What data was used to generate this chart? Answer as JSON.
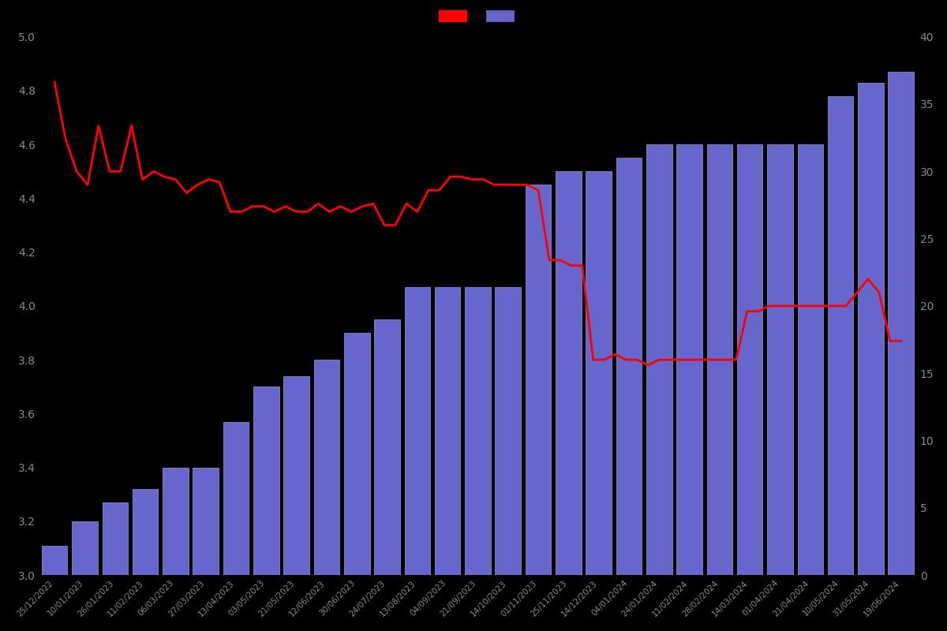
{
  "dates": [
    "25/12/2022",
    "10/01/2023",
    "26/01/2023",
    "11/02/2023",
    "06/03/2023",
    "27/03/2023",
    "13/04/2023",
    "03/05/2023",
    "21/05/2023",
    "12/06/2023",
    "30/06/2023",
    "24/07/2023",
    "13/08/2023",
    "04/09/2023",
    "21/09/2023",
    "14/10/2023",
    "01/11/2023",
    "25/11/2023",
    "14/12/2023",
    "04/01/2024",
    "24/01/2024",
    "11/02/2024",
    "28/02/2024",
    "14/03/2024",
    "01/04/2024",
    "21/04/2024",
    "10/05/2024",
    "31/05/2024",
    "19/06/2024"
  ],
  "bar_heights": [
    3.11,
    3.2,
    3.27,
    3.32,
    3.4,
    3.4,
    3.57,
    3.7,
    3.74,
    3.8,
    3.9,
    3.95,
    4.07,
    4.07,
    4.07,
    4.07,
    4.45,
    4.5,
    4.5,
    4.55,
    4.6,
    4.6,
    4.6,
    4.6,
    4.6,
    4.6,
    4.78,
    4.83,
    4.87
  ],
  "line_values": [
    4.83,
    4.62,
    4.5,
    4.45,
    4.67,
    4.5,
    4.5,
    4.67,
    4.47,
    4.5,
    4.48,
    4.47,
    4.42,
    4.45,
    4.47,
    4.46,
    4.35,
    4.35,
    4.37,
    4.37,
    4.35,
    4.37,
    4.35,
    4.35,
    4.38,
    4.35,
    4.37,
    4.35,
    4.37,
    4.38,
    4.3,
    4.3,
    4.38,
    4.35,
    4.43,
    4.43,
    4.48,
    4.48,
    4.47,
    4.47,
    4.45,
    4.45,
    4.45,
    4.45,
    4.43,
    4.17,
    4.17,
    4.15,
    4.15,
    3.8,
    3.8,
    3.82,
    3.8,
    3.8,
    3.78,
    3.8,
    3.8,
    3.8,
    3.8,
    3.8,
    3.8,
    3.8,
    3.8,
    3.98,
    3.98,
    4.0,
    4.0,
    4.0,
    4.0,
    4.0,
    4.0,
    4.0,
    4.0,
    4.05,
    4.1,
    4.05,
    3.87,
    3.87
  ],
  "bar_color": "#6666cc",
  "bar_edge_color": "#9999dd",
  "line_color": "#ff0000",
  "background_color": "#000000",
  "text_color": "#888888",
  "left_ylim": [
    3.0,
    5.0
  ],
  "right_ylim": [
    0,
    40
  ],
  "left_yticks": [
    3.0,
    3.2,
    3.4,
    3.6,
    3.8,
    4.0,
    4.2,
    4.4,
    4.6,
    4.8,
    5.0
  ],
  "right_yticks": [
    0,
    5,
    10,
    15,
    20,
    25,
    30,
    35,
    40
  ],
  "figsize": [
    12,
    8
  ]
}
